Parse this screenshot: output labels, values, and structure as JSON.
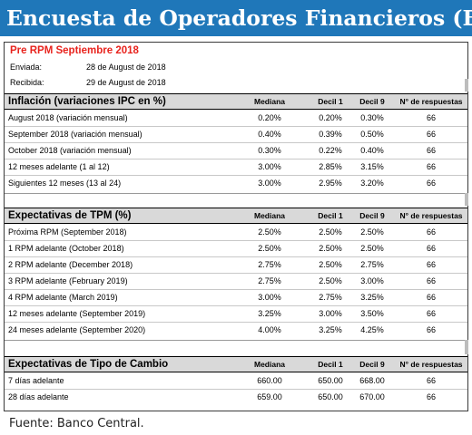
{
  "banner": {
    "title": "Encuesta de Operadores Financieros (EOF)"
  },
  "survey": {
    "title": "Pre RPM Septiembre 2018",
    "sent_label": "Enviada:",
    "sent_date": "28 de August de 2018",
    "received_label": "Recibida:",
    "received_date": "29 de August de 2018"
  },
  "columns": {
    "median": "Mediana",
    "decile1": "Decil 1",
    "decile9": "Decil 9",
    "responses": "N° de respuestas"
  },
  "sections": [
    {
      "title": "Inflación (variaciones IPC en %)",
      "rows": [
        {
          "label": "August 2018 (variación mensual)",
          "median": "0.20%",
          "d1": "0.20%",
          "d9": "0.30%",
          "n": "66"
        },
        {
          "label": "September 2018 (variación mensual)",
          "median": "0.40%",
          "d1": "0.39%",
          "d9": "0.50%",
          "n": "66"
        },
        {
          "label": "October 2018 (variación mensual)",
          "median": "0.30%",
          "d1": "0.22%",
          "d9": "0.40%",
          "n": "66"
        },
        {
          "label": "12 meses adelante (1 al 12)",
          "median": "3.00%",
          "d1": "2.85%",
          "d9": "3.15%",
          "n": "66"
        },
        {
          "label": "Siguientes 12 meses (13 al 24)",
          "median": "3.00%",
          "d1": "2.95%",
          "d9": "3.20%",
          "n": "66"
        }
      ]
    },
    {
      "title": "Expectativas de TPM (%)",
      "rows": [
        {
          "label": "Próxima  RPM  (September 2018)",
          "median": "2.50%",
          "d1": "2.50%",
          "d9": "2.50%",
          "n": "66"
        },
        {
          "label": "1 RPM adelante  (October 2018)",
          "median": "2.50%",
          "d1": "2.50%",
          "d9": "2.50%",
          "n": "66"
        },
        {
          "label": "2 RPM adelante  (December 2018)",
          "median": "2.75%",
          "d1": "2.50%",
          "d9": "2.75%",
          "n": "66"
        },
        {
          "label": "3 RPM adelante  (February 2019)",
          "median": "2.75%",
          "d1": "2.50%",
          "d9": "3.00%",
          "n": "66"
        },
        {
          "label": "4 RPM adelante  (March 2019)",
          "median": "3.00%",
          "d1": "2.75%",
          "d9": "3.25%",
          "n": "66"
        },
        {
          "label": "12 meses adelante  (September 2019)",
          "median": "3.25%",
          "d1": "3.00%",
          "d9": "3.50%",
          "n": "66"
        },
        {
          "label": "24 meses adelante  (September 2020)",
          "median": "4.00%",
          "d1": "3.25%",
          "d9": "4.25%",
          "n": "66"
        }
      ]
    },
    {
      "title": "Expectativas de Tipo de Cambio",
      "rows": [
        {
          "label": "7 días adelante",
          "median": "660.00",
          "d1": "650.00",
          "d9": "668.00",
          "n": "66"
        },
        {
          "label": "28 días adelante",
          "median": "659.00",
          "d1": "650.00",
          "d9": "670.00",
          "n": "66"
        }
      ]
    }
  ],
  "footer": {
    "source": "Fuente: Banco Central."
  }
}
